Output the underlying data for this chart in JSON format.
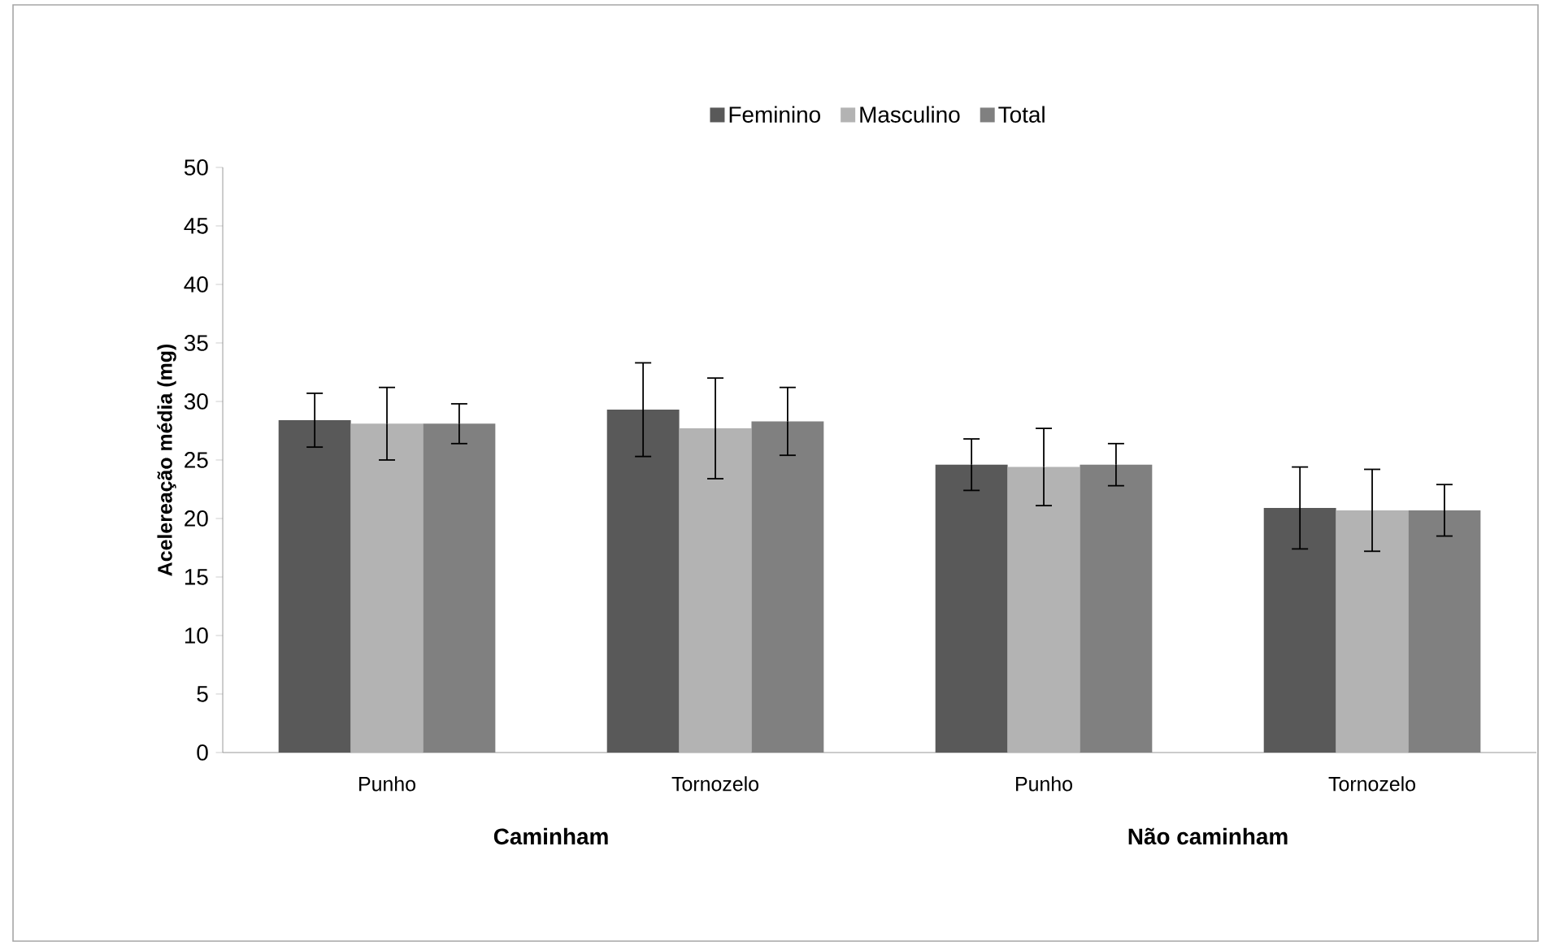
{
  "chart_data": {
    "type": "bar",
    "ylabel": "Acelereação média (mg)",
    "categories": [
      "Punho",
      "Tornozelo",
      "Punho",
      "Tornozelo"
    ],
    "series": [
      {
        "name": "Feminino",
        "color": "#595959",
        "values": [
          28.4,
          29.3,
          24.6,
          20.9
        ],
        "errors": [
          2.3,
          4.0,
          2.2,
          3.5
        ]
      },
      {
        "name": "Masculino",
        "color": "#b3b3b3",
        "values": [
          28.1,
          27.7,
          24.4,
          20.7
        ],
        "errors": [
          3.1,
          4.3,
          3.3,
          3.5
        ]
      },
      {
        "name": "Total",
        "color": "#808080",
        "values": [
          28.1,
          28.3,
          24.6,
          20.7
        ],
        "errors": [
          1.7,
          2.9,
          1.8,
          2.2
        ]
      }
    ],
    "annotations": [
      {
        "text": "Caminham"
      },
      {
        "text": "Não caminham"
      }
    ],
    "ylim": [
      0,
      50
    ],
    "yticks": [
      0,
      5,
      10,
      15,
      20,
      25,
      30,
      35,
      40,
      45,
      50
    ],
    "grid": false,
    "legend": "top"
  }
}
